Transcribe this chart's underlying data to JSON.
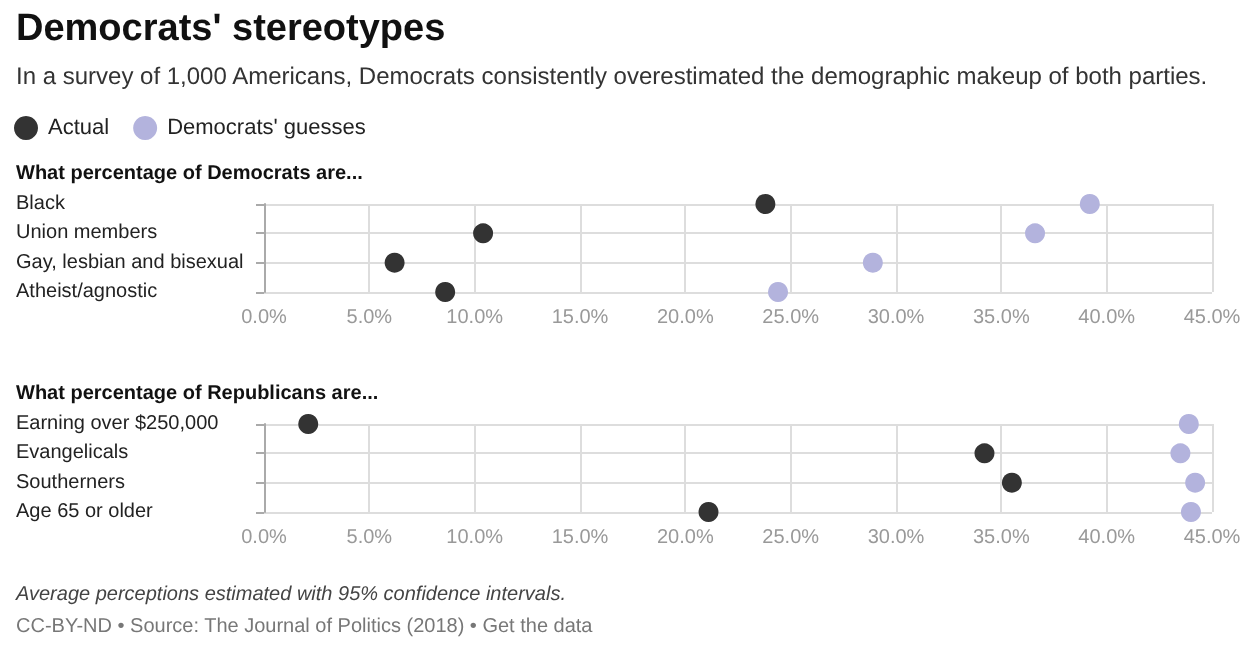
{
  "chart_data": [
    {
      "type": "scatter",
      "title": "Democrats' stereotypes",
      "subtitle": "In a survey of 1,000 Americans, Democrats consistently overestimated the demographic makeup of both parties.",
      "ylabel": "What percentage of Democrats are...",
      "orientation": "horizontal",
      "categories": [
        "Black",
        "Union members",
        "Gay, lesbian and bisexual",
        "Atheist/agnostic"
      ],
      "series": [
        {
          "name": "Actual",
          "color": "#333333",
          "values": [
            23.8,
            10.4,
            6.2,
            8.6
          ]
        },
        {
          "name": "Democrats' guesses",
          "color": "#b3b3dd",
          "values": [
            39.2,
            36.6,
            28.9,
            24.4
          ]
        }
      ],
      "xlim": [
        0,
        45
      ],
      "xticks": [
        {
          "value": 0,
          "label": "0.0%"
        },
        {
          "value": 5,
          "label": "5.0%"
        },
        {
          "value": 10,
          "label": "10.0%"
        },
        {
          "value": 15,
          "label": "15.0%"
        },
        {
          "value": 20,
          "label": "20.0%"
        },
        {
          "value": 25,
          "label": "25.0%"
        },
        {
          "value": 30,
          "label": "30.0%"
        },
        {
          "value": 35,
          "label": "35.0%"
        },
        {
          "value": 40,
          "label": "40.0%"
        },
        {
          "value": 45,
          "label": "45.0%"
        }
      ],
      "grid": true,
      "legend": "top left",
      "marker": "circle"
    },
    {
      "type": "scatter",
      "ylabel": "What percentage of Republicans are...",
      "orientation": "horizontal",
      "categories": [
        "Earning over $250,000",
        "Evangelicals",
        "Southerners",
        "Age 65 or older"
      ],
      "series": [
        {
          "color": "#333333",
          "values": [
            2.1,
            34.2,
            35.5,
            21.1
          ]
        },
        {
          "color": "#b3b3dd",
          "values": [
            43.9,
            43.5,
            44.2,
            44.0
          ]
        }
      ],
      "xlim": [
        0,
        45
      ],
      "xticks": [
        {
          "value": 0,
          "label": "0.0%"
        },
        {
          "value": 5,
          "label": "5.0%"
        },
        {
          "value": 10,
          "label": "10.0%"
        },
        {
          "value": 15,
          "label": "15.0%"
        },
        {
          "value": 20,
          "label": "20.0%"
        },
        {
          "value": 25,
          "label": "25.0%"
        },
        {
          "value": 30,
          "label": "30.0%"
        },
        {
          "value": 35,
          "label": "35.0%"
        },
        {
          "value": 40,
          "label": "40.0%"
        },
        {
          "value": 45,
          "label": "45.0%"
        }
      ],
      "grid": true,
      "marker": "circle",
      "annotations": [
        "Average perceptions estimated with 95% confidence intervals.",
        "CC-BY-ND • Source: The Journal of Politics (2018) • Get the data"
      ]
    }
  ]
}
